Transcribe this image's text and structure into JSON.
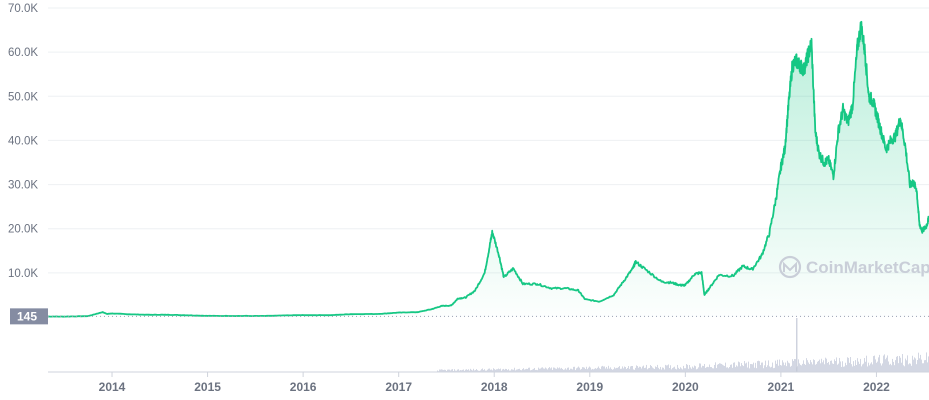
{
  "chart_data": {
    "type": "area",
    "title": "",
    "xlabel": "",
    "ylabel": "",
    "y_tick_labels": [
      "10.0K",
      "20.0K",
      "30.0K",
      "40.0K",
      "50.0K",
      "60.0K",
      "70.0K"
    ],
    "y_tick_values": [
      10000,
      20000,
      30000,
      40000,
      50000,
      60000,
      70000
    ],
    "x_tick_labels": [
      "2014",
      "2015",
      "2016",
      "2017",
      "2018",
      "2019",
      "2020",
      "2021",
      "2022"
    ],
    "x_tick_values": [
      2014,
      2015,
      2016,
      2017,
      2018,
      2019,
      2020,
      2021,
      2022
    ],
    "xlim": [
      2013.33,
      2022.55
    ],
    "ylim": [
      0,
      70000
    ],
    "baseline_value_label": "145",
    "baseline_value": 145,
    "grid": true,
    "line_color": "#16c784",
    "fill_color": "#16c784",
    "baseline_label_bg": "#858ca2",
    "watermark": "CoinMarketCap",
    "series": [
      {
        "x": [
          2013.33,
          2013.5,
          2013.75,
          2013.9,
          2013.95,
          2014.0,
          2014.2,
          2014.4,
          2014.6,
          2014.8,
          2015.0,
          2015.3,
          2015.6,
          2015.9,
          2016.0,
          2016.3,
          2016.5,
          2016.8,
          2017.0,
          2017.2,
          2017.35,
          2017.45,
          2017.55,
          2017.62,
          2017.7,
          2017.8,
          2017.9,
          2017.96,
          2017.98,
          2018.05,
          2018.1,
          2018.2,
          2018.3,
          2018.45,
          2018.6,
          2018.75,
          2018.88,
          2018.95,
          2019.1,
          2019.25,
          2019.35,
          2019.45,
          2019.48,
          2019.6,
          2019.75,
          2019.85,
          2019.95,
          2020.0,
          2020.1,
          2020.17,
          2020.2,
          2020.25,
          2020.35,
          2020.5,
          2020.6,
          2020.7,
          2020.8,
          2020.88,
          2020.95,
          2021.0,
          2021.04,
          2021.08,
          2021.12,
          2021.16,
          2021.2,
          2021.24,
          2021.28,
          2021.32,
          2021.36,
          2021.4,
          2021.45,
          2021.5,
          2021.55,
          2021.6,
          2021.65,
          2021.7,
          2021.75,
          2021.8,
          2021.84,
          2021.88,
          2021.92,
          2021.96,
          2022.0,
          2022.05,
          2022.1,
          2022.15,
          2022.2,
          2022.25,
          2022.3,
          2022.35,
          2022.38,
          2022.42,
          2022.45,
          2022.48,
          2022.52,
          2022.55
        ],
        "y": [
          120,
          100,
          200,
          1100,
          700,
          800,
          600,
          500,
          500,
          380,
          250,
          240,
          230,
          400,
          420,
          430,
          650,
          700,
          1000,
          1100,
          1800,
          2500,
          2600,
          4200,
          4400,
          6000,
          10000,
          17000,
          19300,
          14000,
          9000,
          11000,
          7500,
          7500,
          6500,
          6500,
          6000,
          4000,
          3500,
          5000,
          8000,
          11000,
          12500,
          10500,
          8000,
          7800,
          7200,
          7200,
          9800,
          10000,
          5000,
          6500,
          9500,
          9300,
          11500,
          10800,
          14000,
          19000,
          27000,
          34000,
          38000,
          48000,
          57000,
          58000,
          57000,
          56000,
          59000,
          62000,
          42000,
          37000,
          35000,
          35500,
          32000,
          42000,
          47000,
          44000,
          48000,
          61000,
          66000,
          60000,
          50000,
          49000,
          46000,
          42000,
          38000,
          40000,
          41000,
          45000,
          39000,
          30000,
          30500,
          29000,
          21000,
          19500,
          20500,
          22500
        ]
      }
    ],
    "volume_spike_x": 2021.16
  }
}
